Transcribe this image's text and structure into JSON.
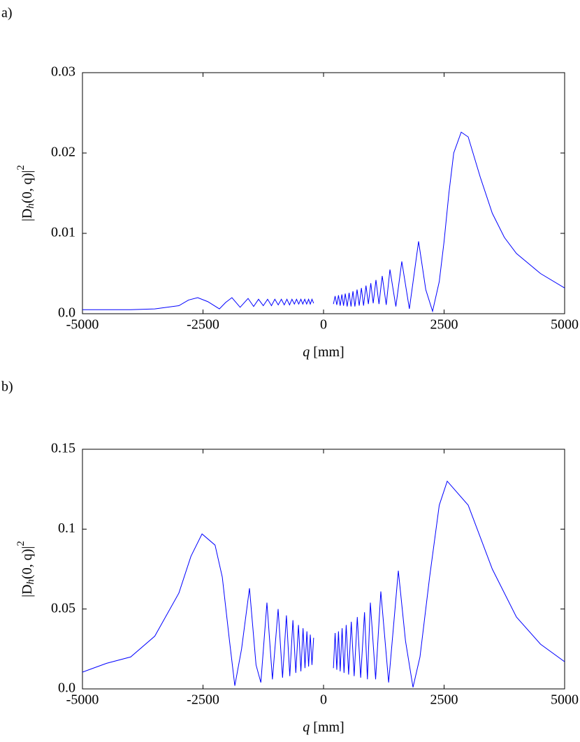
{
  "chart_data": [
    {
      "type": "line",
      "label": "a)",
      "x_label": {
        "var": "q",
        "unit": "[mm]"
      },
      "y_label": {
        "main": "|D",
        "sub": "h",
        "rest": "(0, q)|",
        "sup": "2"
      },
      "color": "#0000ff",
      "xlim": [
        -5000,
        5000
      ],
      "xticks": [
        -5000,
        -2500,
        0,
        2500,
        5000
      ],
      "ylim": [
        0,
        0.03
      ],
      "yticks": [
        {
          "value": 0,
          "label": "0.0"
        },
        0.01,
        0.02,
        0.03
      ],
      "x": [
        -5000,
        -4000,
        -3500,
        -3000,
        -2800,
        -2610,
        -2400,
        -2160,
        -2030,
        -1900,
        -1730,
        -1565,
        -1450,
        -1348,
        -1250,
        -1160,
        -1080,
        -1010,
        -940,
        -875,
        -815,
        -760,
        -705,
        -655,
        -605,
        -560,
        -515,
        -470,
        -430,
        -390,
        -350,
        -310,
        -275,
        -240,
        -205,
        0,
        205,
        240,
        275,
        310,
        345,
        380,
        415,
        450,
        490,
        530,
        570,
        610,
        650,
        695,
        740,
        785,
        830,
        880,
        930,
        980,
        1030,
        1087,
        1150,
        1217,
        1300,
        1377,
        1500,
        1623,
        1780,
        1971,
        2120,
        2261,
        2400,
        2500,
        2600,
        2700,
        2855,
        3000,
        3250,
        3500,
        3750,
        4000,
        4500,
        5000
      ],
      "values": [
        0.0005,
        0.0005,
        0.0006,
        0.001,
        0.0017,
        0.002,
        0.0015,
        0.0006,
        0.0014,
        0.002,
        0.0008,
        0.0019,
        0.0009,
        0.0018,
        0.001,
        0.0018,
        0.001,
        0.0018,
        0.0011,
        0.0018,
        0.0011,
        0.0018,
        0.0011,
        0.0018,
        0.0012,
        0.0018,
        0.0012,
        0.0018,
        0.0012,
        0.0018,
        0.0012,
        0.0018,
        0.0012,
        0.0018,
        0.0013,
        null,
        0.0012,
        0.0022,
        0.0011,
        0.0023,
        0.001,
        0.0024,
        0.001,
        0.0025,
        0.0009,
        0.0026,
        0.0009,
        0.0028,
        0.0009,
        0.003,
        0.001,
        0.0032,
        0.001,
        0.0035,
        0.0012,
        0.0038,
        0.0013,
        0.0042,
        0.0012,
        0.0047,
        0.0011,
        0.0055,
        0.0009,
        0.0065,
        0.0006,
        0.009,
        0.003,
        0.0003,
        0.004,
        0.009,
        0.015,
        0.02,
        0.0226,
        0.022,
        0.017,
        0.0125,
        0.0095,
        0.0075,
        0.005,
        0.0032
      ]
    },
    {
      "type": "line",
      "label": "b)",
      "x_label": {
        "var": "q",
        "unit": "[mm]"
      },
      "y_label": {
        "main": "|D",
        "sub": "h",
        "rest": "(0, q)|",
        "sup": "2"
      },
      "color": "#0000ff",
      "xlim": [
        -5000,
        5000
      ],
      "xticks": [
        -5000,
        -2500,
        0,
        2500,
        5000
      ],
      "ylim": [
        0,
        0.15
      ],
      "yticks": [
        {
          "value": 0,
          "label": "0.0"
        },
        0.05,
        0.1,
        0.15
      ],
      "x": [
        -5000,
        -4500,
        -4000,
        -3500,
        -3000,
        -2750,
        -2520,
        -2250,
        -2100,
        -1950,
        -1840,
        -1700,
        -1536,
        -1400,
        -1300,
        -1174,
        -1060,
        -942,
        -850,
        -770,
        -700,
        -635,
        -575,
        -520,
        -470,
        -425,
        -385,
        -345,
        -310,
        -275,
        -240,
        -205,
        0,
        205,
        240,
        275,
        310,
        345,
        385,
        425,
        470,
        520,
        575,
        635,
        700,
        770,
        850,
        910,
        971,
        1080,
        1188,
        1350,
        1551,
        1700,
        1855,
        2000,
        2200,
        2400,
        2565,
        3000,
        3500,
        4000,
        4500,
        5000
      ],
      "values": [
        0.0105,
        0.016,
        0.02,
        0.033,
        0.06,
        0.083,
        0.097,
        0.09,
        0.07,
        0.03,
        0.002,
        0.025,
        0.063,
        0.015,
        0.004,
        0.054,
        0.006,
        0.05,
        0.007,
        0.046,
        0.008,
        0.043,
        0.01,
        0.04,
        0.011,
        0.038,
        0.013,
        0.036,
        0.014,
        0.034,
        0.015,
        0.032,
        null,
        0.013,
        0.035,
        0.012,
        0.036,
        0.011,
        0.038,
        0.01,
        0.04,
        0.009,
        0.042,
        0.008,
        0.045,
        0.007,
        0.048,
        0.006,
        0.054,
        0.006,
        0.061,
        0.004,
        0.074,
        0.03,
        0.001,
        0.02,
        0.07,
        0.115,
        0.13,
        0.115,
        0.075,
        0.045,
        0.028,
        0.017
      ]
    }
  ]
}
